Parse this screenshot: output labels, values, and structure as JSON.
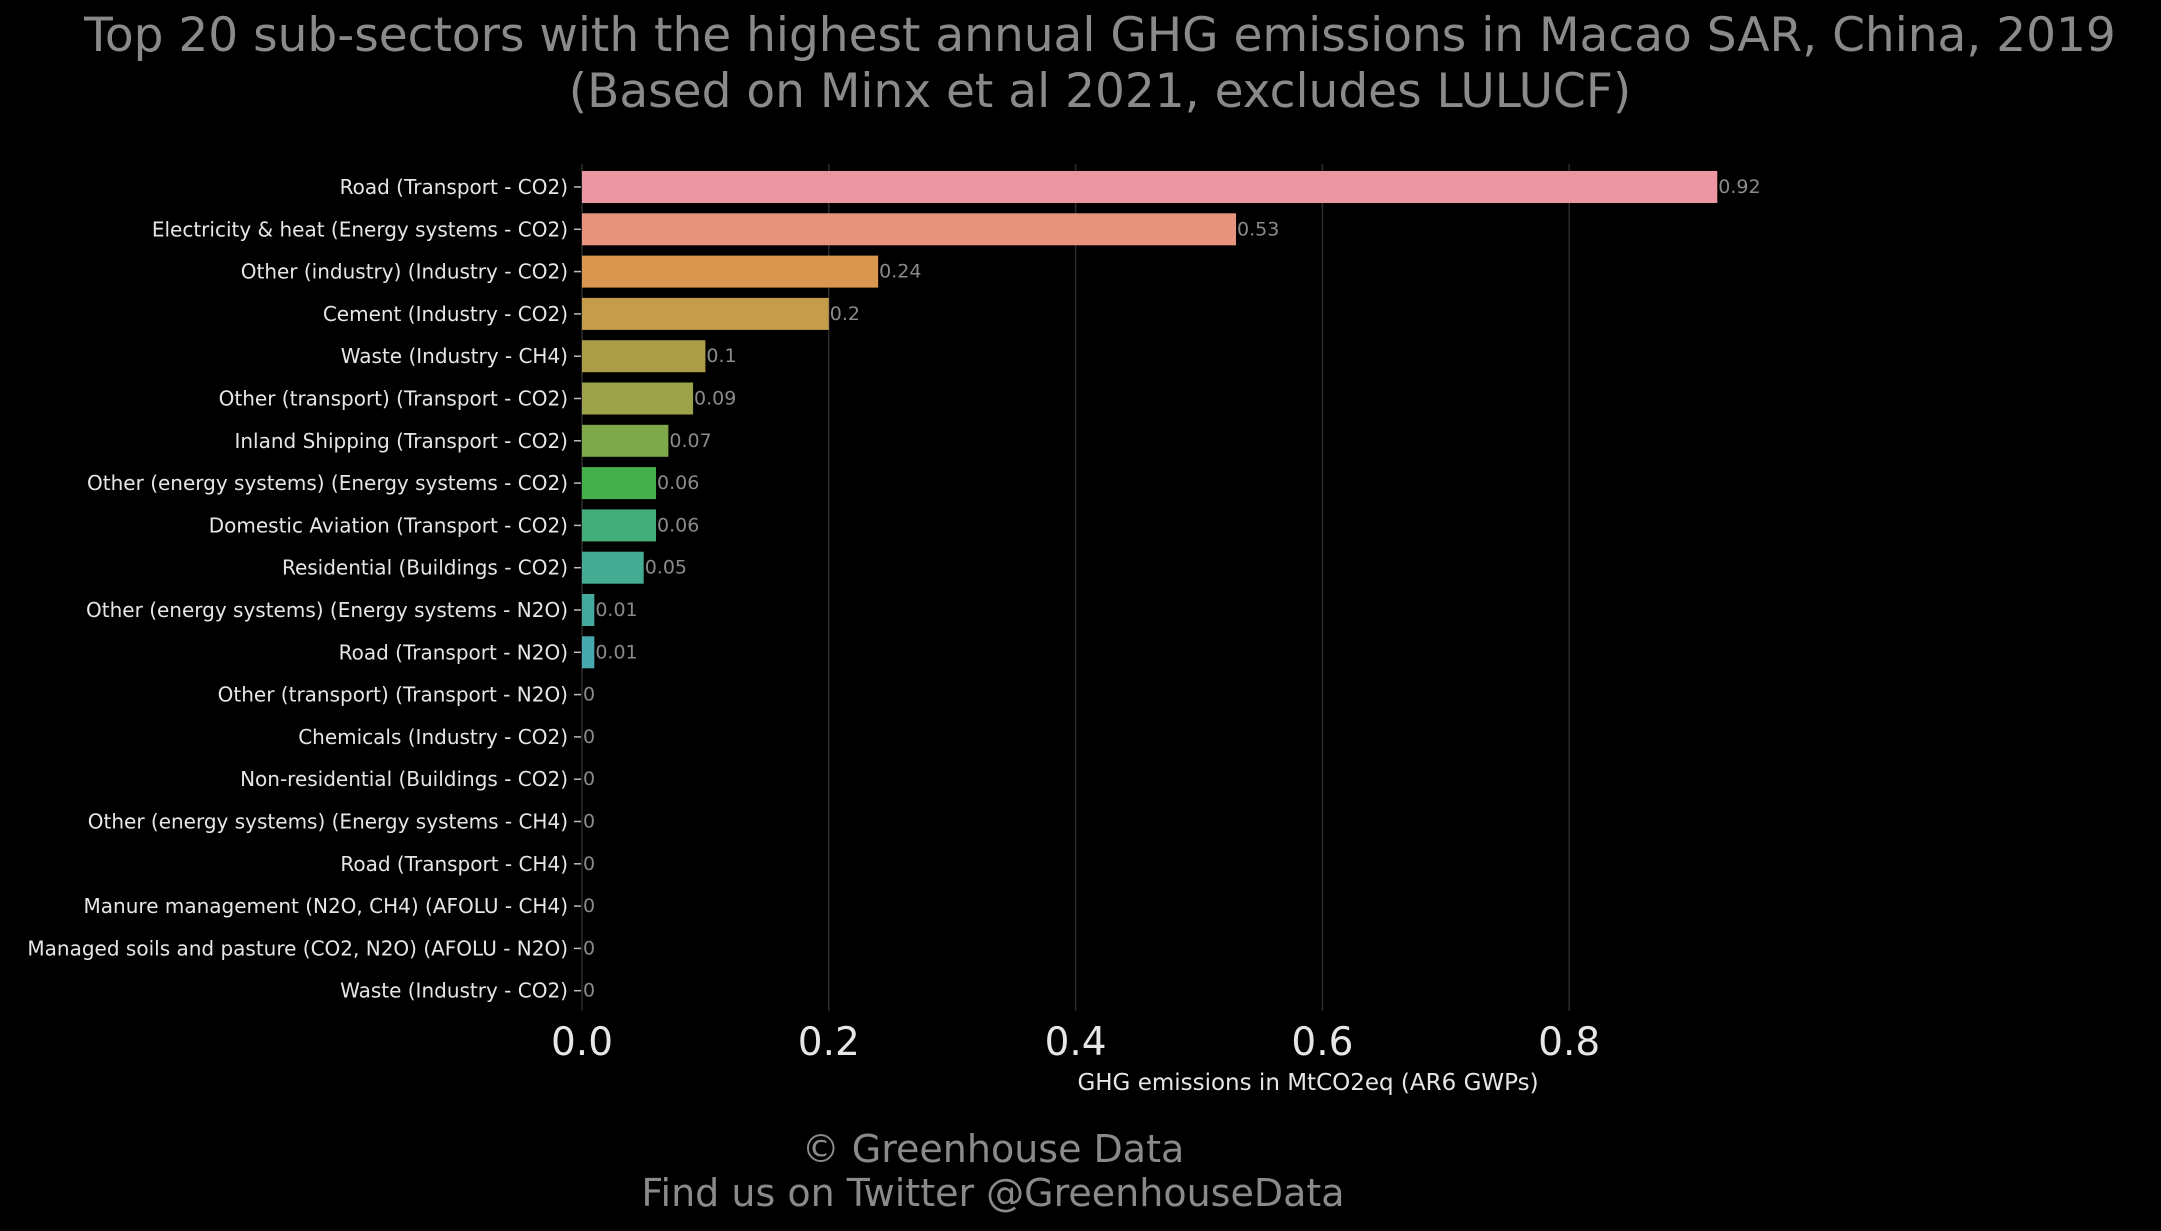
{
  "chart_data": {
    "type": "bar",
    "orientation": "horizontal",
    "title_line1": "Top 20 sub-sectors with the highest annual GHG emissions in Macao SAR, China, 2019",
    "title_line2": "(Based on Minx et al 2021, excludes LULUCF)",
    "xlabel": "GHG emissions in MtCO2eq (AR6 GWPs)",
    "ylabel": "",
    "xlim": [
      0,
      1.0
    ],
    "xticks": [
      0.0,
      0.2,
      0.4,
      0.6,
      0.8
    ],
    "xtick_labels": [
      "0.0",
      "0.2",
      "0.4",
      "0.6",
      "0.8"
    ],
    "grid": "vertical",
    "categories": [
      "Road (Transport - CO2)",
      "Electricity & heat (Energy systems - CO2)",
      "Other (industry) (Industry - CO2)",
      "Cement (Industry - CO2)",
      "Waste (Industry - CH4)",
      "Other (transport) (Transport - CO2)",
      "Inland Shipping (Transport - CO2)",
      "Other (energy systems) (Energy systems - CO2)",
      "Domestic Aviation (Transport - CO2)",
      "Residential (Buildings - CO2)",
      "Other (energy systems) (Energy systems - N2O)",
      "Road (Transport - N2O)",
      "Other (transport) (Transport - N2O)",
      "Chemicals (Industry - CO2)",
      "Non-residential (Buildings - CO2)",
      "Other (energy systems) (Energy systems - CH4)",
      "Road (Transport - CH4)",
      "Manure management (N2O, CH4) (AFOLU - CH4)",
      "Managed soils and pasture (CO2, N2O) (AFOLU - N2O)",
      "Waste (Industry - CO2)"
    ],
    "values": [
      0.92,
      0.53,
      0.24,
      0.2,
      0.1,
      0.09,
      0.07,
      0.06,
      0.06,
      0.05,
      0.01,
      0.01,
      0,
      0,
      0,
      0,
      0,
      0,
      0,
      0
    ],
    "value_labels": [
      "0.92",
      "0.53",
      "0.24",
      "0.2",
      "0.1",
      "0.09",
      "0.07",
      "0.06",
      "0.06",
      "0.05",
      "0.01",
      "0.01",
      "0",
      "0",
      "0",
      "0",
      "0",
      "0",
      "0",
      "0"
    ],
    "colors": [
      "#ec96a4",
      "#e8937e",
      "#d8964e",
      "#c49c4a",
      "#ac9d48",
      "#9ca249",
      "#7fa84b",
      "#45b04b",
      "#44ae7a",
      "#44ac92",
      "#45aa9e",
      "#47a9b0",
      "#4aa9c6",
      "#58a6d8",
      "#7aa2e6",
      "#9d9aec",
      "#bd8feb",
      "#d688e6",
      "#e886cf",
      "#ec8cba"
    ]
  },
  "credit": {
    "line1": "© Greenhouse Data",
    "line2": "Find us on Twitter @GreenhouseData"
  }
}
